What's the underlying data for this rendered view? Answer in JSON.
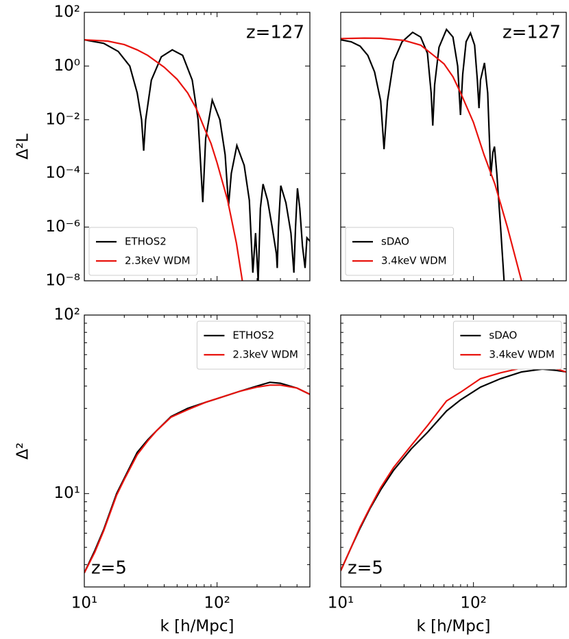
{
  "chart_data": [
    {
      "type": "line",
      "log_x": true,
      "log_y": true,
      "xlim": [
        10,
        500
      ],
      "ylim": [
        1e-08,
        100
      ],
      "xticks": [
        10,
        100
      ],
      "yticks": [
        {
          "value": 100,
          "label": "10²"
        },
        {
          "value": 1,
          "label": "10⁰"
        },
        {
          "value": 0.01,
          "label": "10⁻²"
        },
        {
          "value": 0.0001,
          "label": "10⁻⁴"
        },
        {
          "value": 1e-06,
          "label": "10⁻⁶"
        },
        {
          "value": 1e-08,
          "label": "10⁻⁸"
        }
      ],
      "ylabel": "Δ²L",
      "annotation": "z=127",
      "annotation_loc": "upper right",
      "legend": "lower left",
      "series": [
        {
          "name": "ETHOS2",
          "color": "#000000",
          "x": [
            10,
            14,
            18,
            22,
            25,
            27,
            28,
            29,
            32,
            38,
            46,
            55,
            65,
            72,
            78,
            82,
            92,
            105,
            115,
            122,
            128,
            141,
            160,
            175,
            186,
            195,
            204,
            212,
            222,
            240,
            260,
            280,
            284,
            290,
            302,
            330,
            360,
            379,
            390,
            403,
            420,
            440,
            460,
            475,
            500
          ],
          "values": [
            9.5,
            7,
            3.5,
            1.0,
            0.1,
            0.01,
            0.0007,
            0.01,
            0.3,
            2.2,
            4,
            2.5,
            0.3,
            0.01,
            8.5e-06,
            0.002,
            0.054,
            0.01,
            0.0005,
            6.3e-06,
            0.0001,
            0.0011,
            0.0002,
            1e-05,
            2e-08,
            6e-07,
            1e-08,
            5e-06,
            4e-05,
            1e-05,
            1e-06,
            1e-07,
            3e-08,
            1e-06,
            3.5e-05,
            8e-06,
            6e-07,
            2e-08,
            1e-06,
            2.8e-05,
            5e-06,
            2e-07,
            3e-08,
            4e-07,
            3e-07
          ]
        },
        {
          "name": "2.3keV WDM",
          "color": "#e8120c",
          "x": [
            10,
            15,
            20,
            25,
            30,
            40,
            50,
            60,
            70,
            80,
            90,
            100,
            120,
            140,
            155
          ],
          "values": [
            9.5,
            8.5,
            6.3,
            4.0,
            2.5,
            0.9,
            0.32,
            0.1,
            0.025,
            0.005,
            0.0013,
            0.00025,
            1e-05,
            2.5e-07,
            1e-08
          ]
        }
      ]
    },
    {
      "type": "line",
      "log_x": true,
      "log_y": true,
      "xlim": [
        10,
        500
      ],
      "ylim": [
        1e-08,
        100
      ],
      "xticks": [
        10,
        100
      ],
      "yticks": [
        100,
        1,
        0.01,
        0.0001,
        1e-06,
        1e-08
      ],
      "annotation": "z=127",
      "annotation_loc": "upper right",
      "legend": "lower left",
      "series": [
        {
          "name": "sDAO",
          "color": "#000000",
          "x": [
            10,
            12,
            14,
            16,
            18,
            20,
            21.2,
            22.5,
            25,
            29,
            34.8,
            40,
            45,
            48,
            49.4,
            51,
            55,
            62.6,
            70,
            76,
            79.8,
            83,
            88,
            95,
            102,
            107,
            110,
            113,
            121,
            128,
            135,
            140,
            144,
            150,
            160,
            170
          ],
          "values": [
            9.5,
            8,
            5.5,
            2.5,
            0.6,
            0.05,
            0.0008,
            0.05,
            1.5,
            8,
            18,
            12,
            3,
            0.1,
            0.006,
            0.2,
            5,
            23,
            12,
            1,
            0.015,
            0.5,
            8,
            17,
            6,
            0.3,
            0.027,
            0.3,
            1.3,
            0.1,
            8e-05,
            0.0006,
            0.001,
            0.0001,
            1e-06,
            1e-08
          ]
        },
        {
          "name": "3.4keV WDM",
          "color": "#e8120c",
          "x": [
            10,
            15,
            20,
            30,
            40,
            50,
            60,
            70,
            80,
            100,
            120,
            145,
            180,
            230
          ],
          "values": [
            10.5,
            11,
            10.8,
            9,
            6,
            2.5,
            1.2,
            0.4,
            0.1,
            0.008,
            0.0005,
            4e-05,
            1e-06,
            1e-08
          ]
        }
      ]
    },
    {
      "type": "line",
      "log_x": true,
      "log_y": true,
      "xlim": [
        10,
        500
      ],
      "ylim": [
        3,
        100
      ],
      "xticks": [
        {
          "value": 10,
          "label": "10¹"
        },
        {
          "value": 100,
          "label": "10²"
        }
      ],
      "yticks": [
        {
          "value": 10,
          "label": "10¹"
        },
        {
          "value": 100,
          "label": "10²"
        }
      ],
      "yminorticks": [
        3,
        4,
        5,
        6,
        7,
        8,
        9,
        20,
        30,
        40,
        50,
        60,
        70,
        80,
        90
      ],
      "xlabel": "k [h/Mpc]",
      "ylabel": "Δ²",
      "annotation": "z=5",
      "annotation_loc": "lower left",
      "legend": "upper right",
      "series": [
        {
          "name": "ETHOS2",
          "color": "#000000",
          "x": [
            10,
            12,
            14,
            17.5,
            20,
            25,
            30,
            35,
            45,
            60,
            82.5,
            100,
            150,
            200,
            250,
            300,
            400,
            500
          ],
          "values": [
            3.6,
            4.8,
            6.3,
            10,
            12.2,
            17,
            20,
            22.5,
            27,
            30,
            32.5,
            34,
            37.5,
            40,
            42,
            41.5,
            39,
            36
          ]
        },
        {
          "name": "2.3keV WDM",
          "color": "#e8120c",
          "x": [
            10,
            12,
            14,
            17.5,
            20,
            25,
            30,
            35,
            45,
            60,
            82.5,
            100,
            150,
            200,
            250,
            300,
            400,
            500
          ],
          "values": [
            3.6,
            4.7,
            6.2,
            9.8,
            12,
            16.5,
            19.7,
            22.5,
            26.8,
            29.5,
            32.5,
            34,
            37.5,
            39.5,
            40.5,
            40.5,
            39,
            36
          ]
        }
      ]
    },
    {
      "type": "line",
      "log_x": true,
      "log_y": true,
      "xlim": [
        10,
        500
      ],
      "ylim": [
        3,
        100
      ],
      "xticks": [
        {
          "value": 10,
          "label": "10¹"
        },
        {
          "value": 100,
          "label": "10²"
        }
      ],
      "yticks": [
        10,
        100
      ],
      "yminorticks": [
        3,
        4,
        5,
        6,
        7,
        8,
        9,
        20,
        30,
        40,
        50,
        60,
        70,
        80,
        90
      ],
      "xlabel": "k [h/Mpc]",
      "annotation": "z=5",
      "annotation_loc": "lower left",
      "legend": "upper right",
      "series": [
        {
          "name": "sDAO",
          "color": "#000000",
          "x": [
            10,
            12,
            14,
            16.7,
            20,
            25,
            34,
            45,
            62.6,
            80,
            113,
            160,
            230,
            330,
            420,
            500
          ],
          "values": [
            3.7,
            5,
            6.4,
            8.3,
            10.5,
            13.5,
            17.8,
            22,
            29,
            33.5,
            39.5,
            44,
            48,
            49.8,
            49,
            48
          ]
        },
        {
          "name": "3.4keV WDM",
          "color": "#e8120c",
          "x": [
            10,
            12,
            14,
            16.7,
            20,
            25,
            34,
            45,
            62.6,
            80,
            113,
            160,
            230,
            330,
            420,
            500
          ],
          "values": [
            3.7,
            5,
            6.5,
            8.4,
            10.8,
            14,
            18.6,
            24,
            33,
            37,
            44,
            47.5,
            50.5,
            51.5,
            50,
            48
          ]
        }
      ]
    }
  ]
}
